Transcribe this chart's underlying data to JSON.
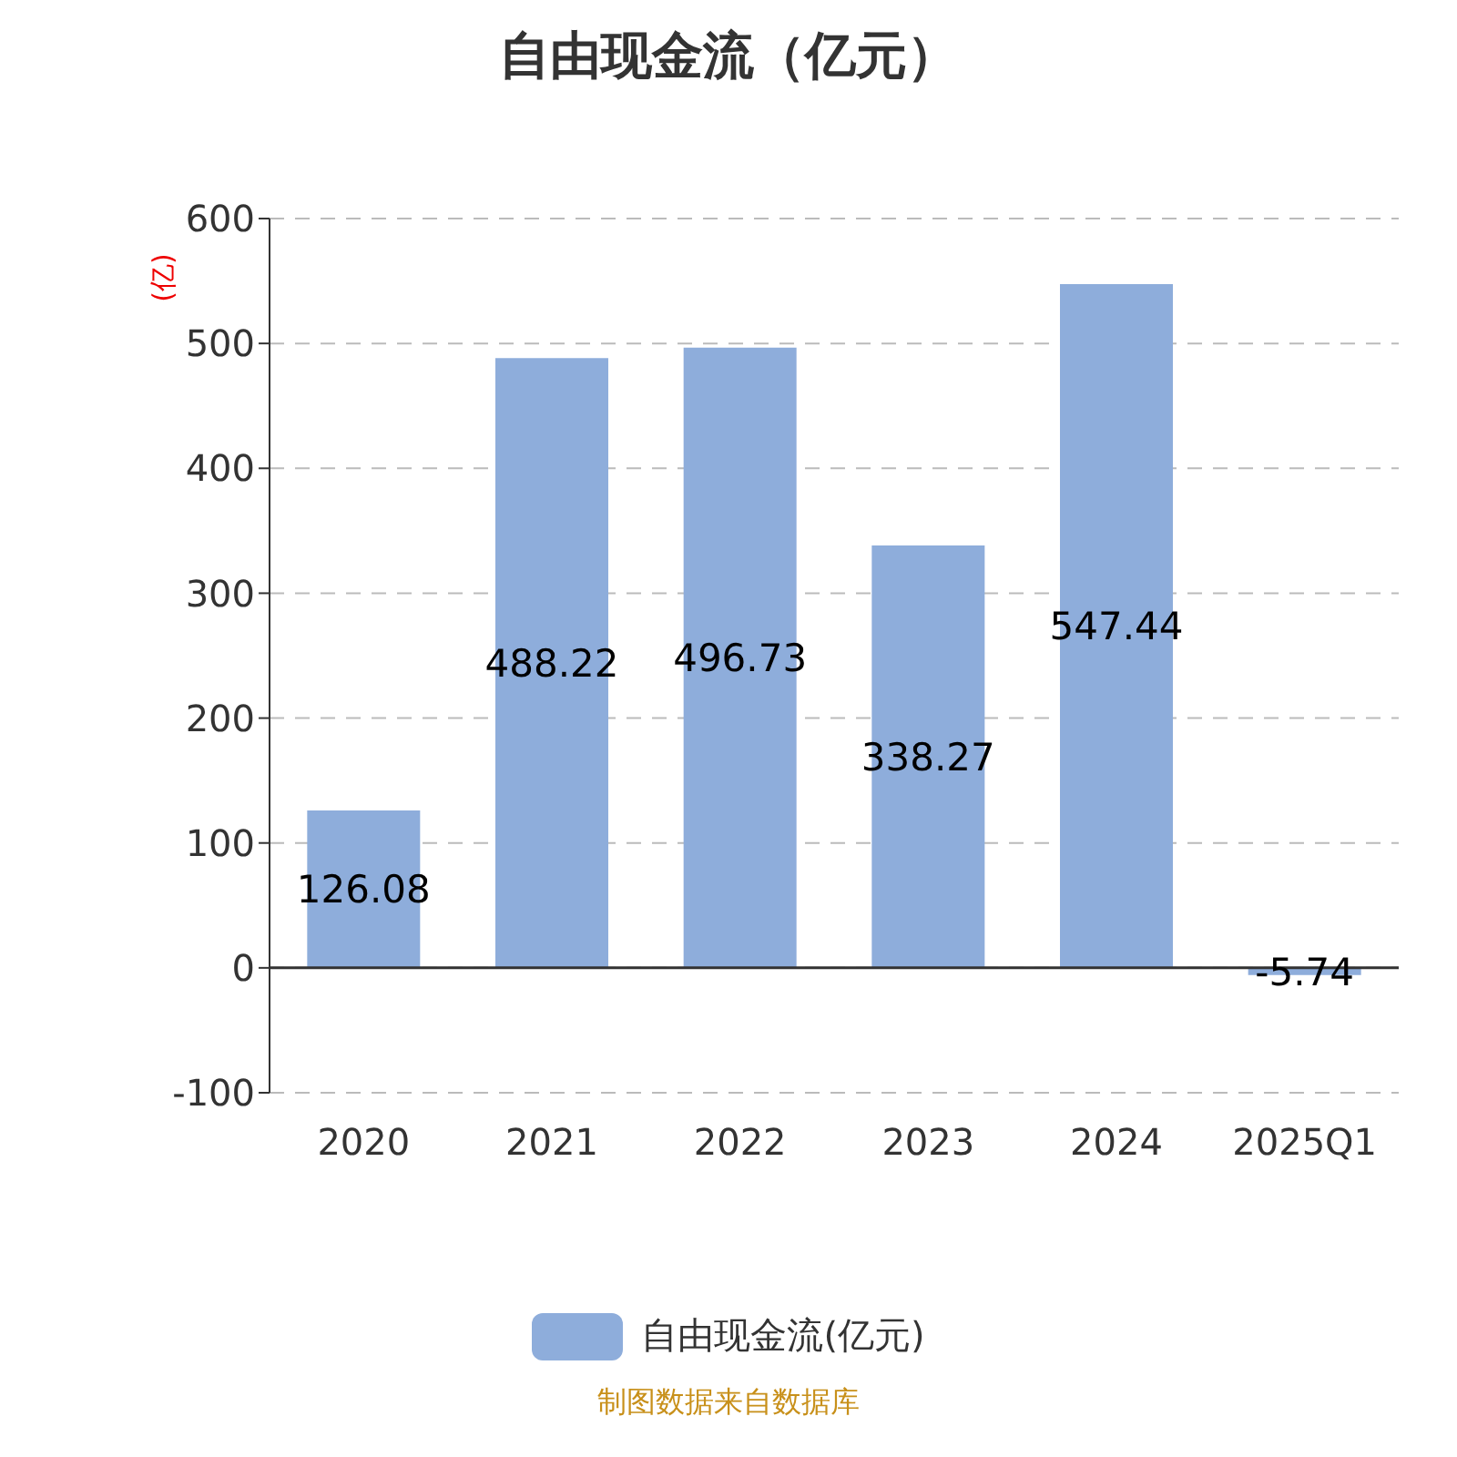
{
  "chart_data": {
    "type": "bar",
    "title": "自由现金流（亿元）",
    "ylabel": "(亿)",
    "categories": [
      "2020",
      "2021",
      "2022",
      "2023",
      "2024",
      "2025Q1"
    ],
    "series": [
      {
        "name": "自由现金流(亿元)",
        "color": "#8eaddb",
        "values": [
          126.08,
          488.22,
          496.73,
          338.27,
          547.44,
          -5.74
        ]
      }
    ],
    "ylim": [
      -100,
      600
    ],
    "yticks": [
      -100,
      0,
      100,
      200,
      300,
      400,
      500,
      600
    ],
    "grid": "y",
    "legend": "bottom",
    "data_labels": true,
    "annotations": [
      "制图数据来自数据库"
    ]
  }
}
